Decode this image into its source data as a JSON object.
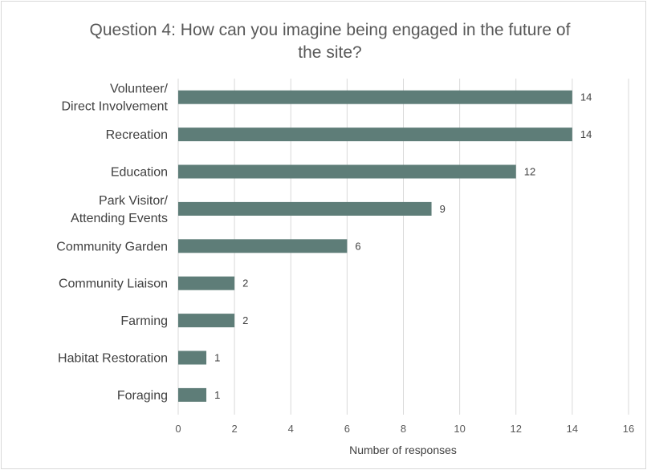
{
  "chart_data": {
    "type": "bar",
    "orientation": "horizontal",
    "title_lines": [
      "Question 4: How can you imagine being engaged in the future of",
      "the site?"
    ],
    "categories": [
      [
        "Volunteer/",
        "Direct Involvement"
      ],
      [
        "Recreation"
      ],
      [
        "Education"
      ],
      [
        "Park Visitor/",
        "Attending Events"
      ],
      [
        "Community Garden"
      ],
      [
        "Community Liaison"
      ],
      [
        "Farming"
      ],
      [
        "Habitat Restoration"
      ],
      [
        "Foraging"
      ]
    ],
    "values": [
      14,
      14,
      12,
      9,
      6,
      2,
      2,
      1,
      1
    ],
    "xlabel": "Number of responses",
    "ylabel": "",
    "xlim": [
      0,
      16
    ],
    "x_ticks": [
      "0",
      "2",
      "4",
      "6",
      "8",
      "10",
      "12",
      "14",
      "16"
    ],
    "grid": "vertical",
    "legend": "none",
    "data_labels": true,
    "bar_color": "#5e7d78"
  }
}
